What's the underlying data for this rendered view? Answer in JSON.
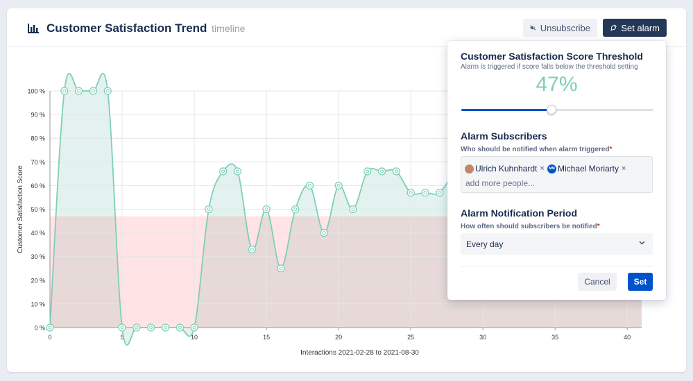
{
  "header": {
    "title": "Customer Satisfaction Trend",
    "subtitle": "timeline",
    "unsubscribe_label": "Unsubscribe",
    "set_alarm_label": "Set alarm"
  },
  "chart_data": {
    "type": "area",
    "xlabel": "Interactions 2021-02-28 to 2021-08-30",
    "ylabel": "Customer Satisfaction Score",
    "xlim": [
      0,
      41
    ],
    "ylim": [
      0,
      100
    ],
    "x_ticks": [
      "0",
      "5",
      "10",
      "15",
      "20",
      "25",
      "30",
      "35",
      "40"
    ],
    "y_ticks": [
      "0 %",
      "10 %",
      "20 %",
      "30 %",
      "40 %",
      "50 %",
      "60 %",
      "70 %",
      "80 %",
      "90 %",
      "100 %"
    ],
    "threshold": 47,
    "grid": true,
    "series": [
      {
        "x": [
          0,
          1,
          2,
          3,
          4,
          5,
          6,
          7,
          8,
          9,
          10,
          11,
          12,
          13,
          14,
          15,
          16,
          17,
          18,
          19,
          20,
          21,
          22,
          23,
          24,
          25,
          26,
          27,
          28
        ],
        "values": [
          0,
          100,
          100,
          100,
          100,
          0,
          0,
          0,
          0,
          0,
          0,
          50,
          66,
          66,
          33,
          50,
          25,
          50,
          60,
          40,
          60,
          50,
          66,
          66,
          66,
          57,
          57,
          57,
          66
        ]
      }
    ],
    "colors": {
      "line": "#7fcfb8",
      "area_above": "#e3f2ee",
      "below_threshold_empty": "#ffe3e5",
      "below_threshold_filled": "#e6d9d8"
    }
  },
  "popup": {
    "threshold_title": "Customer Satisfaction Score Threshold",
    "threshold_help": "Alarm is triggered if score falls below the threshold setting",
    "threshold_value_text": "47%",
    "threshold_value": 0.47,
    "subscribers_title": "Alarm Subscribers",
    "subscribers_label": "Who should be notified when alarm triggered",
    "required_mark": "*",
    "subscribers": [
      {
        "name": "Ulrich Kuhnhardt",
        "remove": "×"
      },
      {
        "name": "Michael Moriarty",
        "initials": "MM",
        "remove": "×"
      }
    ],
    "add_placeholder": "add more people...",
    "period_title": "Alarm Notification Period",
    "period_label": "How often should subscribers be notified",
    "period_value": "Every day",
    "cancel_label": "Cancel",
    "set_label": "Set"
  }
}
